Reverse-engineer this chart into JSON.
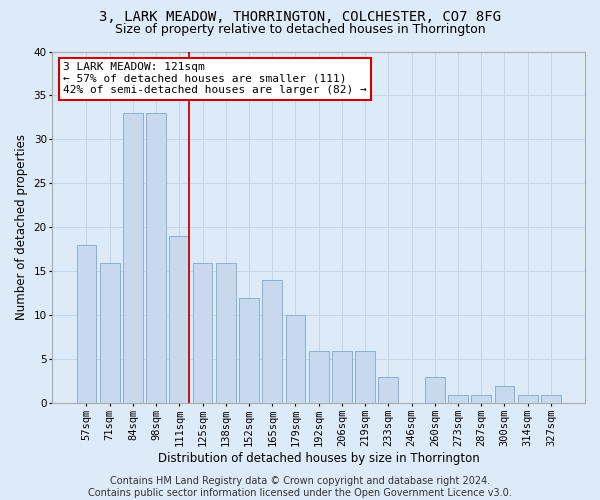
{
  "title": "3, LARK MEADOW, THORRINGTON, COLCHESTER, CO7 8FG",
  "subtitle": "Size of property relative to detached houses in Thorrington",
  "xlabel": "Distribution of detached houses by size in Thorrington",
  "ylabel": "Number of detached properties",
  "categories": [
    "57sqm",
    "71sqm",
    "84sqm",
    "98sqm",
    "111sqm",
    "125sqm",
    "138sqm",
    "152sqm",
    "165sqm",
    "179sqm",
    "192sqm",
    "206sqm",
    "219sqm",
    "233sqm",
    "246sqm",
    "260sqm",
    "273sqm",
    "287sqm",
    "300sqm",
    "314sqm",
    "327sqm"
  ],
  "values": [
    18,
    16,
    33,
    33,
    19,
    16,
    16,
    12,
    14,
    10,
    6,
    6,
    6,
    3,
    0,
    3,
    1,
    1,
    2,
    1,
    1
  ],
  "bar_color": "#c8d9ee",
  "bar_edge_color": "#8aafd4",
  "annotation_text": "3 LARK MEADOW: 121sqm\n← 57% of detached houses are smaller (111)\n42% of semi-detached houses are larger (82) →",
  "annotation_box_color": "#ffffff",
  "annotation_box_edge": "#cc0000",
  "vline_color": "#cc0000",
  "vline_x": 4.42,
  "ylim": [
    0,
    40
  ],
  "yticks": [
    0,
    5,
    10,
    15,
    20,
    25,
    30,
    35,
    40
  ],
  "grid_color": "#c5d5e8",
  "background_color": "#ddeaf7",
  "fig_background_color": "#ddeaf7",
  "footer_text": "Contains HM Land Registry data © Crown copyright and database right 2024.\nContains public sector information licensed under the Open Government Licence v3.0.",
  "title_fontsize": 10,
  "subtitle_fontsize": 9,
  "axis_label_fontsize": 8.5,
  "tick_fontsize": 7.5,
  "annotation_fontsize": 8,
  "footer_fontsize": 7
}
